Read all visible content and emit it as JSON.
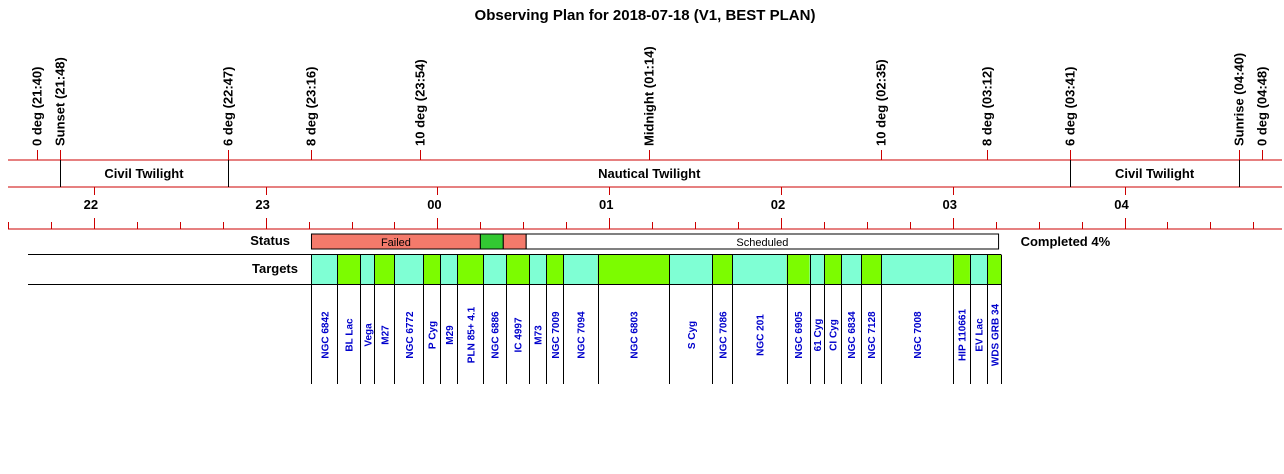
{
  "title": "Observing Plan for 2018-07-18 (V1, BEST PLAN)",
  "chart_data": {
    "type": "timeline",
    "time_axis": {
      "hour_labels": [
        "22",
        "23",
        "00",
        "01",
        "02",
        "03",
        "04"
      ],
      "start": "21:30",
      "end": "04:55"
    },
    "events": [
      {
        "label": "0 deg (21:40)",
        "time": "21:40"
      },
      {
        "label": "Sunset (21:48)",
        "time": "21:48"
      },
      {
        "label": "6 deg (22:47)",
        "time": "22:47"
      },
      {
        "label": "8 deg (23:16)",
        "time": "23:16"
      },
      {
        "label": "10 deg (23:54)",
        "time": "23:54"
      },
      {
        "label": "Midnight (01:14)",
        "time": "01:14"
      },
      {
        "label": "10 deg (02:35)",
        "time": "02:35"
      },
      {
        "label": "8 deg (03:12)",
        "time": "03:12"
      },
      {
        "label": "6 deg (03:41)",
        "time": "03:41"
      },
      {
        "label": "Sunrise (04:40)",
        "time": "04:40"
      },
      {
        "label": "0 deg (04:48)",
        "time": "04:48"
      }
    ],
    "twilight_bands": [
      {
        "label": "Civil Twilight",
        "start": "21:48",
        "end": "22:47"
      },
      {
        "label": "Nautical Twilight",
        "start": "22:47",
        "end": "03:41"
      },
      {
        "label": "Civil Twilight",
        "start": "03:41",
        "end": "04:40"
      }
    ],
    "status": {
      "label": "Status",
      "segments": [
        {
          "label": "Failed",
          "start": "23:16",
          "end": "00:15",
          "color": "#f47a6b"
        },
        {
          "label": "",
          "start": "00:15",
          "end": "00:23",
          "color": "#32c832"
        },
        {
          "label": "",
          "start": "00:23",
          "end": "00:31",
          "color": "#f47a6b"
        },
        {
          "label": "Scheduled",
          "start": "00:31",
          "end": "03:16",
          "color": "#ffffff"
        }
      ],
      "completed_text": "Completed 4%"
    },
    "targets": {
      "label": "Targets",
      "colors": {
        "a": "#7fffd4",
        "b": "#7cfc00"
      },
      "items": [
        {
          "name": "NGC 6842",
          "start": "23:16",
          "end": "23:25",
          "color": "a"
        },
        {
          "name": "BL Lac",
          "start": "23:25",
          "end": "23:33",
          "color": "b"
        },
        {
          "name": "Vega",
          "start": "23:33",
          "end": "23:38",
          "color": "a"
        },
        {
          "name": "M27",
          "start": "23:38",
          "end": "23:45",
          "color": "b"
        },
        {
          "name": "NGC 6772",
          "start": "23:45",
          "end": "23:55",
          "color": "a"
        },
        {
          "name": "P Cyg",
          "start": "23:55",
          "end": "00:01",
          "color": "b"
        },
        {
          "name": "M29",
          "start": "00:01",
          "end": "00:07",
          "color": "a"
        },
        {
          "name": "PLN 85+ 4.1",
          "start": "00:07",
          "end": "00:16",
          "color": "b"
        },
        {
          "name": "NGC 6886",
          "start": "00:16",
          "end": "00:24",
          "color": "a"
        },
        {
          "name": "IC 4997",
          "start": "00:24",
          "end": "00:32",
          "color": "b"
        },
        {
          "name": "M73",
          "start": "00:32",
          "end": "00:38",
          "color": "a"
        },
        {
          "name": "NGC 7009",
          "start": "00:38",
          "end": "00:44",
          "color": "b"
        },
        {
          "name": "NGC 7094",
          "start": "00:44",
          "end": "00:56",
          "color": "a"
        },
        {
          "name": "NGC 6803",
          "start": "00:56",
          "end": "01:21",
          "color": "b"
        },
        {
          "name": "S Cyg",
          "start": "01:21",
          "end": "01:36",
          "color": "a"
        },
        {
          "name": "NGC 7086",
          "start": "01:36",
          "end": "01:43",
          "color": "b"
        },
        {
          "name": "NGC 201",
          "start": "01:43",
          "end": "02:02",
          "color": "a"
        },
        {
          "name": "NGC 6905",
          "start": "02:02",
          "end": "02:10",
          "color": "b"
        },
        {
          "name": "61 Cyg",
          "start": "02:10",
          "end": "02:15",
          "color": "a"
        },
        {
          "name": "CI Cyg",
          "start": "02:15",
          "end": "02:21",
          "color": "b"
        },
        {
          "name": "NGC 6834",
          "start": "02:21",
          "end": "02:28",
          "color": "a"
        },
        {
          "name": "NGC 7128",
          "start": "02:28",
          "end": "02:35",
          "color": "b"
        },
        {
          "name": "NGC 7008",
          "start": "02:35",
          "end": "03:00",
          "color": "a"
        },
        {
          "name": "HIP 110661",
          "start": "03:00",
          "end": "03:06",
          "color": "b"
        },
        {
          "name": "EV Lac",
          "start": "03:06",
          "end": "03:12",
          "color": "a"
        },
        {
          "name": "WDS GRB 34",
          "start": "03:12",
          "end": "03:17",
          "color": "b"
        }
      ]
    },
    "colors": {
      "axis_line": "#cc0000",
      "target_text": "#0000cc",
      "text": "#000000"
    }
  }
}
